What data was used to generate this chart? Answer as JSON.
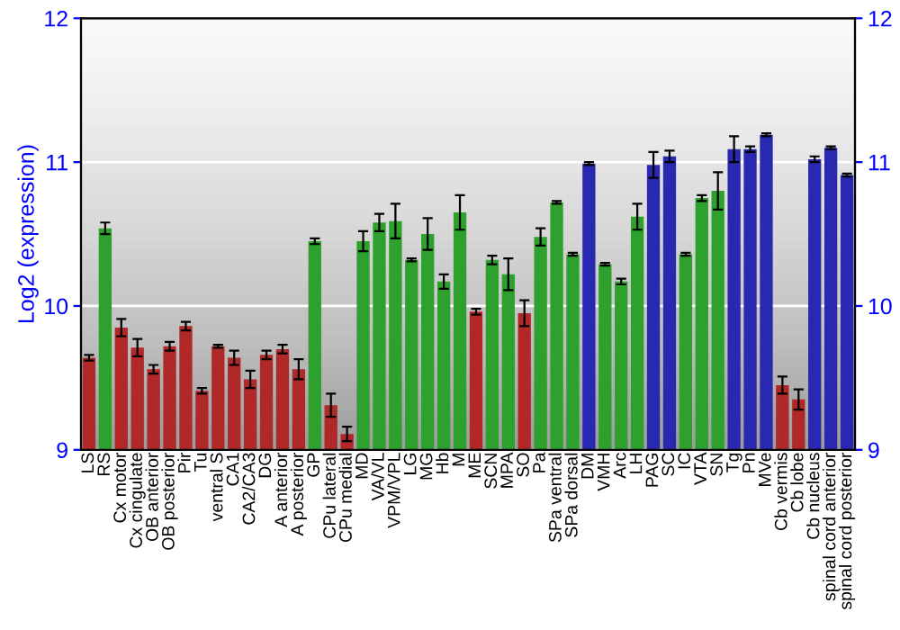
{
  "chart_data": {
    "type": "bar",
    "ylabel": "Log2 (expression)",
    "categories": [
      "LS",
      "RS",
      "Cx motor",
      "Cx cingulate",
      "OB anterior",
      "OB posterior",
      "Pir",
      "Tu",
      "ventral S",
      "CA1",
      "CA2/CA3",
      "DG",
      "A anterior",
      "A posterior",
      "GP",
      "CPu lateral",
      "CPu medial",
      "MD",
      "VA/VL",
      "VPM/VPL",
      "LG",
      "MG",
      "Hb",
      "M",
      "ME",
      "SCN",
      "MPA",
      "SO",
      "Pa",
      "SPa ventral",
      "SPa dorsal",
      "DM",
      "VMH",
      "Arc",
      "LH",
      "PAG",
      "SC",
      "IC",
      "VTA",
      "SN",
      "Tg",
      "Pn",
      "MVe",
      "Cb vermis",
      "Cb lobe",
      "Cb nucleus",
      "spinal cord anterior",
      "spinal cord posterior"
    ],
    "values": [
      9.64,
      10.54,
      9.85,
      9.71,
      9.56,
      9.72,
      9.86,
      9.41,
      9.72,
      9.64,
      9.49,
      9.66,
      9.7,
      9.56,
      10.45,
      9.31,
      9.11,
      10.45,
      10.58,
      10.59,
      10.32,
      10.5,
      10.17,
      10.65,
      9.96,
      10.32,
      10.22,
      9.95,
      10.48,
      10.72,
      10.36,
      10.99,
      10.29,
      10.17,
      10.62,
      10.98,
      11.04,
      10.36,
      10.75,
      10.8,
      11.09,
      11.09,
      11.19,
      9.45,
      9.35,
      11.02,
      11.1,
      10.91
    ],
    "errors": [
      0.02,
      0.04,
      0.06,
      0.06,
      0.03,
      0.03,
      0.03,
      0.02,
      0.01,
      0.05,
      0.06,
      0.03,
      0.03,
      0.07,
      0.02,
      0.08,
      0.05,
      0.07,
      0.06,
      0.12,
      0.01,
      0.11,
      0.05,
      0.12,
      0.02,
      0.03,
      0.11,
      0.09,
      0.06,
      0.01,
      0.01,
      0.01,
      0.01,
      0.02,
      0.09,
      0.09,
      0.04,
      0.01,
      0.02,
      0.13,
      0.09,
      0.02,
      0.01,
      0.06,
      0.07,
      0.02,
      0.01,
      0.01
    ],
    "colors": [
      "#b02828",
      "#2ea02e",
      "#b02828",
      "#b02828",
      "#b02828",
      "#b02828",
      "#b02828",
      "#b02828",
      "#b02828",
      "#b02828",
      "#b02828",
      "#b02828",
      "#b02828",
      "#b02828",
      "#2ea02e",
      "#b02828",
      "#b02828",
      "#2ea02e",
      "#2ea02e",
      "#2ea02e",
      "#2ea02e",
      "#2ea02e",
      "#2ea02e",
      "#2ea02e",
      "#b02828",
      "#2ea02e",
      "#2ea02e",
      "#b02828",
      "#2ea02e",
      "#2ea02e",
      "#2ea02e",
      "#2828b0",
      "#2ea02e",
      "#2ea02e",
      "#2ea02e",
      "#2828b0",
      "#2828b0",
      "#2ea02e",
      "#2ea02e",
      "#2ea02e",
      "#2828b0",
      "#2828b0",
      "#2828b0",
      "#b02828",
      "#b02828",
      "#2828b0",
      "#2828b0",
      "#2828b0"
    ],
    "ylim": [
      9,
      12
    ],
    "yticks": [
      9,
      10,
      11,
      12
    ],
    "y2lim": [
      9,
      12
    ],
    "y2ticks": [
      9,
      10,
      11,
      12
    ],
    "grid": "y"
  }
}
